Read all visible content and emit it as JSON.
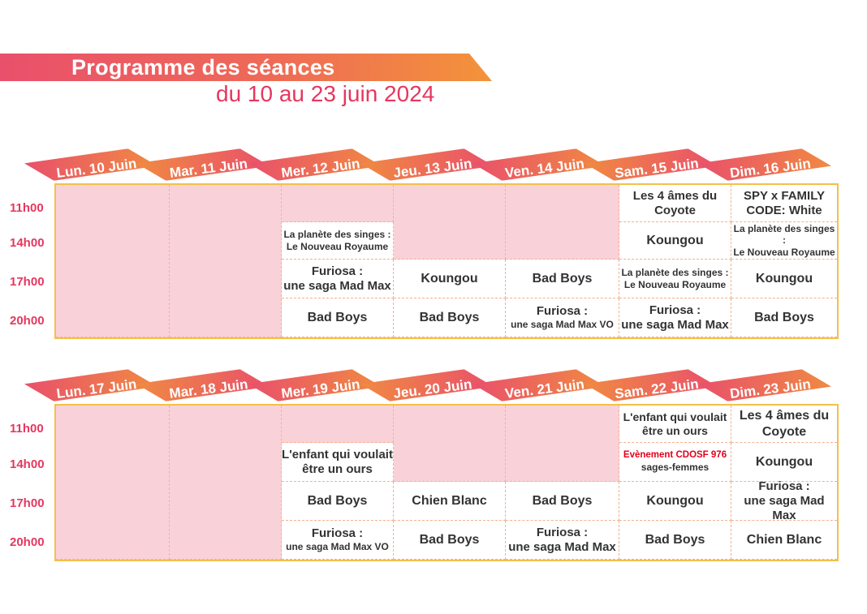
{
  "header": {
    "title": "Programme des séances",
    "subtitle": "du 10 au 23 juin 2024"
  },
  "colors": {
    "accent_pink": "#e9506b",
    "accent_orange": "#f08a42",
    "empty_cell": "#f9d2d9",
    "grid_border": "#f4c04a",
    "event_red": "#e2001a"
  },
  "times": [
    "11h00",
    "14h00",
    "17h00",
    "20h00"
  ],
  "weeks": [
    {
      "days": [
        "Lun. 10 Juin",
        "Mar. 11 Juin",
        "Mer. 12 Juin",
        "Jeu. 13 Juin",
        "Ven. 14 Juin",
        "Sam. 15 Juin",
        "Dim. 16 Juin"
      ],
      "slots": {
        "mer_14h": [
          "La planète des singes :",
          "Le Nouveau Royaume"
        ],
        "mer_17h": [
          "Furiosa :",
          "une saga Mad Max"
        ],
        "mer_20h": "Bad Boys",
        "jeu_17h": "Koungou",
        "jeu_20h": "Bad Boys",
        "ven_17h": "Bad Boys",
        "ven_20h": [
          "Furiosa :",
          "une saga Mad Max VO"
        ],
        "sam_11h": [
          "Les 4 âmes du",
          "Coyote"
        ],
        "sam_14h": "Koungou",
        "sam_17h": [
          "La planète des singes :",
          "Le Nouveau Royaume"
        ],
        "sam_20h": [
          "Furiosa :",
          "une saga Mad Max"
        ],
        "dim_11h": [
          "SPY x FAMILY",
          "CODE: White"
        ],
        "dim_14h": [
          "La planète des singes :",
          "Le Nouveau Royaume"
        ],
        "dim_17h": "Koungou",
        "dim_20h": "Bad Boys"
      }
    },
    {
      "days": [
        "Lun. 17 Juin",
        "Mar. 18 Juin",
        "Mer. 19 Juin",
        "Jeu. 20 Juin",
        "Ven. 21 Juin",
        "Sam. 22 Juin",
        "Dim. 23 Juin"
      ],
      "slots": {
        "mer_14h": [
          "L'enfant qui voulait",
          "être un ours"
        ],
        "mer_17h": "Bad Boys",
        "mer_20h": [
          "Furiosa :",
          "une saga Mad Max VO"
        ],
        "jeu_17h": "Chien Blanc",
        "jeu_20h": "Bad Boys",
        "ven_17h": "Bad Boys",
        "ven_20h": [
          "Furiosa :",
          "une saga Mad Max"
        ],
        "sam_11h": [
          "L'enfant qui voulait",
          "être un ours"
        ],
        "sam_14h": [
          "Evènement CDOSF 976",
          "sages-femmes"
        ],
        "sam_17h": "Koungou",
        "sam_20h": "Bad Boys",
        "dim_11h": [
          "Les 4 âmes du",
          "Coyote"
        ],
        "dim_14h": "Koungou",
        "dim_17h": [
          "Furiosa :",
          "une saga Mad Max"
        ],
        "dim_20h": "Chien Blanc"
      }
    }
  ]
}
